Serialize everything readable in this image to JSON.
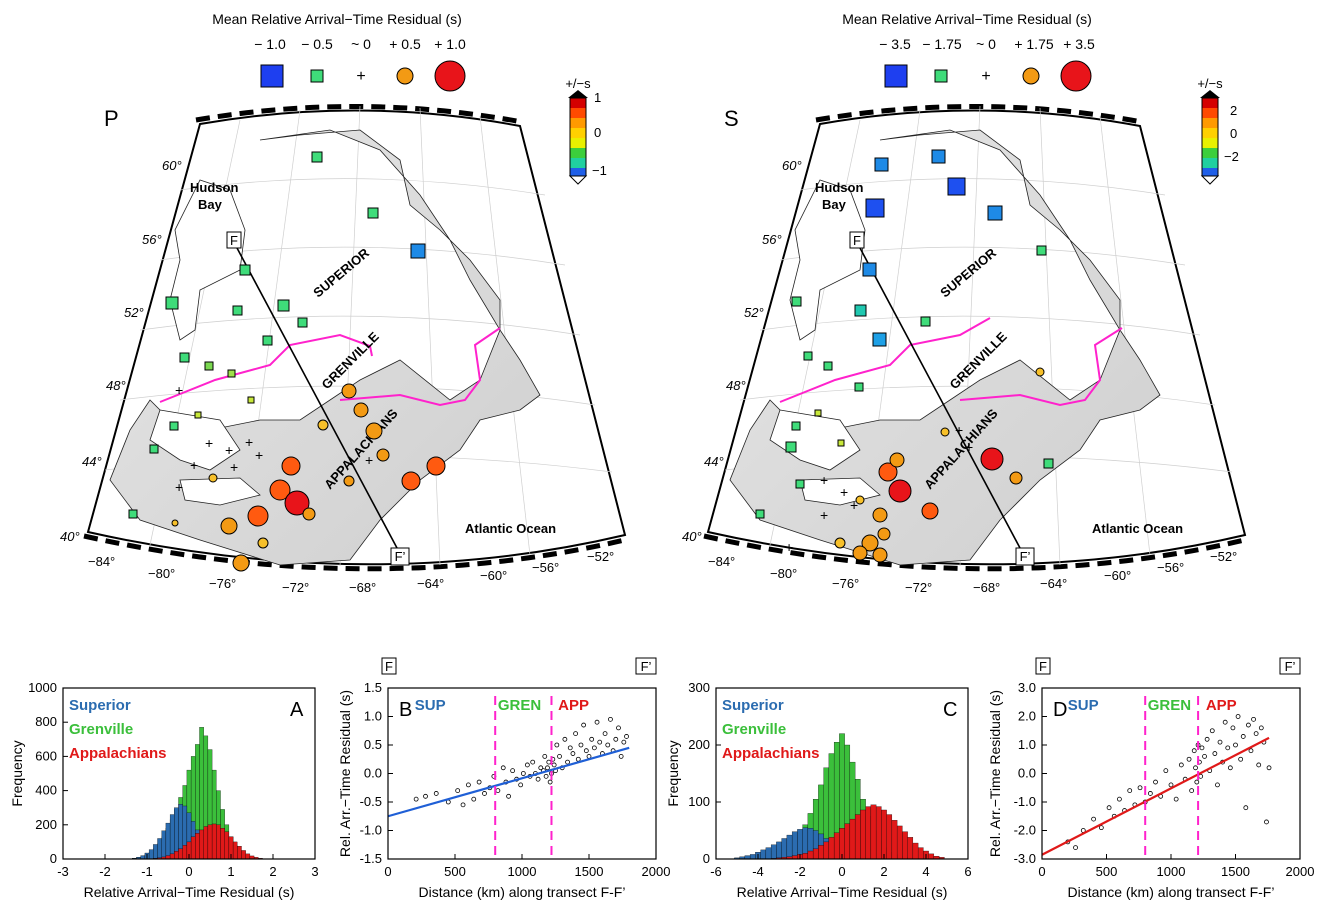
{
  "maps": [
    {
      "phase": "P",
      "legend_title": "Mean Relative Arrival−Time Residual (s)",
      "legend_labels": [
        "− 1.0",
        "− 0.5",
        "~ 0",
        "+ 0.5",
        "+ 1.0"
      ],
      "colorbar_title": "+/−s",
      "colorbar_ticks": [
        "1",
        "0",
        "−1"
      ],
      "lat_labels": [
        "60°",
        "56°",
        "52°",
        "48°",
        "44°",
        "40°"
      ],
      "lon_labels": [
        "−84°",
        "−80°",
        "−76°",
        "−72°",
        "−68°",
        "−64°",
        "−60°",
        "−56°",
        "−52°"
      ],
      "province_labels": [
        "SUPERIOR",
        "GRENVILLE",
        "APPALACHIANS"
      ],
      "place_labels": [
        "Hudson",
        "Bay",
        "Atlantic Ocean"
      ],
      "transect_start": "F",
      "transect_end": "F’"
    },
    {
      "phase": "S",
      "legend_title": "Mean Relative Arrival−Time Residual (s)",
      "legend_labels": [
        "− 3.5",
        "− 1.75",
        "~ 0",
        "+ 1.75",
        "+ 3.5"
      ],
      "colorbar_title": "+/−s",
      "colorbar_ticks": [
        "2",
        "0",
        "−2"
      ],
      "lat_labels": [
        "60°",
        "56°",
        "52°",
        "48°",
        "44°",
        "40°"
      ],
      "lon_labels": [
        "−84°",
        "−80°",
        "−76°",
        "−72°",
        "−68°",
        "−64°",
        "−60°",
        "−56°",
        "−52°"
      ],
      "province_labels": [
        "SUPERIOR",
        "GRENVILLE",
        "APPALACHIANS"
      ],
      "place_labels": [
        "Hudson",
        "Bay",
        "Atlantic Ocean"
      ],
      "transect_start": "F",
      "transect_end": "F’"
    }
  ],
  "colors": {
    "superior": "#2b6cb0",
    "grenville": "#3bbf3b",
    "appalachians": "#e01919",
    "fit_p": "#1f5fd6",
    "fit_s": "#e01919",
    "boundary": "#ff22cc"
  },
  "chart_data": [
    {
      "id": "A",
      "panel_label": "A",
      "type": "bar",
      "xlabel": "Relative Arrival−Time Residual (s)",
      "ylabel": "Frequency",
      "xlim": [
        -3,
        3
      ],
      "ylim": [
        0,
        1000
      ],
      "x_ticks": [
        "-3",
        "-2",
        "-1",
        "0",
        "1",
        "2",
        "3"
      ],
      "y_ticks": [
        "0",
        "200",
        "400",
        "600",
        "800",
        "1000"
      ],
      "x": [
        -1.3,
        -1.2,
        -1.1,
        -1.0,
        -0.9,
        -0.8,
        -0.7,
        -0.6,
        -0.5,
        -0.4,
        -0.3,
        -0.2,
        -0.1,
        0.0,
        0.1,
        0.2,
        0.3,
        0.4,
        0.5,
        0.6,
        0.7,
        0.8,
        0.9,
        1.0,
        1.1,
        1.2,
        1.3,
        1.4,
        1.5,
        1.6,
        1.7,
        1.8
      ],
      "series": [
        {
          "name": "Grenville",
          "values": [
            5,
            10,
            15,
            25,
            40,
            60,
            90,
            130,
            180,
            230,
            290,
            360,
            430,
            520,
            600,
            670,
            770,
            720,
            640,
            520,
            400,
            290,
            200,
            130,
            80,
            45,
            25,
            12,
            6,
            3,
            2,
            1
          ]
        },
        {
          "name": "Superior",
          "values": [
            5,
            10,
            20,
            35,
            55,
            85,
            120,
            165,
            210,
            260,
            300,
            320,
            310,
            270,
            220,
            170,
            120,
            80,
            50,
            30,
            18,
            10,
            5,
            3,
            1,
            0,
            0,
            0,
            0,
            0,
            0,
            0
          ]
        },
        {
          "name": "Appalachians",
          "values": [
            0,
            0,
            0,
            1,
            2,
            4,
            7,
            12,
            20,
            30,
            45,
            60,
            80,
            100,
            130,
            150,
            170,
            190,
            200,
            205,
            200,
            180,
            160,
            130,
            100,
            75,
            50,
            30,
            18,
            10,
            5,
            2
          ]
        }
      ]
    },
    {
      "id": "B",
      "panel_label": "B",
      "type": "scatter",
      "xlabel": "Distance (km) along transect F-F’",
      "ylabel": "Rel. Arr.−Time Residual (s)",
      "xlim": [
        0,
        2000
      ],
      "ylim": [
        -1.5,
        1.5
      ],
      "x_ticks": [
        "0",
        "500",
        "1000",
        "1500",
        "2000"
      ],
      "y_ticks": [
        "-1.5",
        "-1.0",
        "-0.5",
        "0.0",
        "0.5",
        "1.0",
        "1.5"
      ],
      "transect_start": "F",
      "transect_end": "F’",
      "region_labels": [
        "SUP",
        "GREN",
        "APP"
      ],
      "boundaries_km": [
        800,
        1220
      ],
      "fit_line": {
        "x": [
          0,
          1800
        ],
        "y": [
          -0.75,
          0.45
        ]
      },
      "points": {
        "x": [
          210,
          280,
          360,
          450,
          520,
          560,
          600,
          640,
          680,
          720,
          760,
          790,
          820,
          860,
          880,
          900,
          930,
          960,
          990,
          1010,
          1040,
          1060,
          1080,
          1100,
          1120,
          1140,
          1160,
          1170,
          1180,
          1190,
          1200,
          1210,
          1220,
          1230,
          1240,
          1250,
          1260,
          1280,
          1300,
          1320,
          1340,
          1360,
          1380,
          1400,
          1420,
          1440,
          1460,
          1480,
          1500,
          1520,
          1540,
          1560,
          1580,
          1600,
          1620,
          1640,
          1660,
          1680,
          1700,
          1720,
          1740,
          1760,
          1780
        ],
        "y": [
          -0.45,
          -0.4,
          -0.35,
          -0.5,
          -0.3,
          -0.55,
          -0.2,
          -0.45,
          -0.15,
          -0.35,
          -0.25,
          -0.05,
          -0.3,
          0.1,
          -0.15,
          -0.4,
          0.05,
          -0.1,
          -0.2,
          0.0,
          0.15,
          -0.05,
          0.2,
          0.0,
          -0.1,
          0.1,
          0.05,
          0.3,
          -0.05,
          0.1,
          0.2,
          -0.15,
          0.0,
          0.25,
          0.15,
          0.05,
          0.5,
          0.3,
          0.1,
          0.6,
          0.2,
          0.45,
          0.35,
          0.7,
          0.25,
          0.5,
          0.85,
          0.4,
          0.3,
          0.6,
          0.45,
          0.9,
          0.55,
          0.35,
          0.7,
          0.5,
          0.95,
          0.4,
          0.6,
          0.8,
          0.3,
          0.55,
          0.65
        ]
      }
    },
    {
      "id": "C",
      "panel_label": "C",
      "type": "bar",
      "xlabel": "Relative Arrival−Time Residual (s)",
      "ylabel": "Frequency",
      "xlim": [
        -6,
        6
      ],
      "ylim": [
        0,
        300
      ],
      "x_ticks": [
        "-6",
        "-4",
        "-2",
        "0",
        "2",
        "4",
        "6"
      ],
      "y_ticks": [
        "0",
        "100",
        "200",
        "300"
      ],
      "x": [
        -5.0,
        -4.75,
        -4.5,
        -4.25,
        -4.0,
        -3.75,
        -3.5,
        -3.25,
        -3.0,
        -2.75,
        -2.5,
        -2.25,
        -2.0,
        -1.75,
        -1.5,
        -1.25,
        -1.0,
        -0.75,
        -0.5,
        -0.25,
        0.0,
        0.25,
        0.5,
        0.75,
        1.0,
        1.25,
        1.5,
        1.75,
        2.0,
        2.25,
        2.5,
        2.75,
        3.0,
        3.25,
        3.5,
        3.75,
        4.0,
        4.25,
        4.5,
        4.75
      ],
      "series": [
        {
          "name": "Grenville",
          "values": [
            1,
            2,
            3,
            4,
            6,
            8,
            10,
            14,
            18,
            24,
            30,
            38,
            48,
            60,
            80,
            105,
            130,
            160,
            185,
            205,
            220,
            200,
            170,
            140,
            105,
            75,
            50,
            32,
            20,
            12,
            8,
            5,
            3,
            2,
            1,
            0,
            0,
            0,
            0,
            0
          ]
        },
        {
          "name": "Superior",
          "values": [
            2,
            4,
            6,
            8,
            12,
            16,
            20,
            25,
            30,
            36,
            42,
            48,
            52,
            55,
            54,
            50,
            44,
            36,
            28,
            20,
            14,
            9,
            5,
            3,
            2,
            1,
            0,
            0,
            0,
            0,
            0,
            0,
            0,
            0,
            0,
            0,
            0,
            0,
            0,
            0
          ]
        },
        {
          "name": "Appalachians",
          "values": [
            0,
            0,
            0,
            0,
            0,
            0,
            0,
            1,
            2,
            3,
            4,
            6,
            8,
            10,
            14,
            18,
            24,
            30,
            38,
            46,
            54,
            62,
            70,
            78,
            86,
            92,
            95,
            92,
            86,
            78,
            68,
            58,
            48,
            38,
            28,
            20,
            14,
            9,
            5,
            3
          ]
        }
      ]
    },
    {
      "id": "D",
      "panel_label": "D",
      "type": "scatter",
      "xlabel": "Distance (km) along transect F-F’",
      "ylabel": "Rel. Arr.−Time Residual (s)",
      "xlim": [
        0,
        2000
      ],
      "ylim": [
        -3.0,
        3.0
      ],
      "x_ticks": [
        "0",
        "500",
        "1000",
        "1500",
        "2000"
      ],
      "y_ticks": [
        "-3.0",
        "-2.0",
        "-1.0",
        "0.0",
        "1.0",
        "2.0",
        "3.0"
      ],
      "transect_start": "F",
      "transect_end": "F’",
      "region_labels": [
        "SUP",
        "GREN",
        "APP"
      ],
      "boundaries_km": [
        800,
        1210
      ],
      "fit_line": {
        "x": [
          0,
          1760
        ],
        "y": [
          -2.85,
          1.25
        ]
      },
      "points": {
        "x": [
          200,
          260,
          320,
          400,
          460,
          520,
          560,
          600,
          640,
          680,
          720,
          760,
          800,
          840,
          880,
          920,
          960,
          1000,
          1040,
          1080,
          1110,
          1140,
          1160,
          1180,
          1190,
          1200,
          1210,
          1220,
          1230,
          1240,
          1260,
          1280,
          1300,
          1320,
          1340,
          1360,
          1380,
          1400,
          1420,
          1440,
          1460,
          1480,
          1500,
          1520,
          1540,
          1560,
          1580,
          1600,
          1620,
          1640,
          1660,
          1680,
          1700,
          1720,
          1740,
          1760
        ],
        "y": [
          -2.4,
          -2.6,
          -2.0,
          -1.6,
          -1.9,
          -1.2,
          -1.5,
          -0.9,
          -1.3,
          -0.6,
          -1.1,
          -0.5,
          -1.0,
          -0.7,
          -0.3,
          -0.8,
          0.1,
          -0.4,
          -0.9,
          0.3,
          -0.2,
          0.5,
          -0.6,
          0.8,
          0.2,
          -0.3,
          1.0,
          0.4,
          -0.1,
          0.9,
          0.6,
          1.2,
          0.1,
          1.5,
          0.7,
          -0.4,
          1.1,
          0.4,
          1.8,
          0.9,
          0.2,
          1.6,
          1.0,
          2.0,
          0.5,
          1.3,
          -1.2,
          1.7,
          0.8,
          1.9,
          1.4,
          0.3,
          1.6,
          1.1,
          -1.7,
          0.2
        ]
      }
    }
  ]
}
